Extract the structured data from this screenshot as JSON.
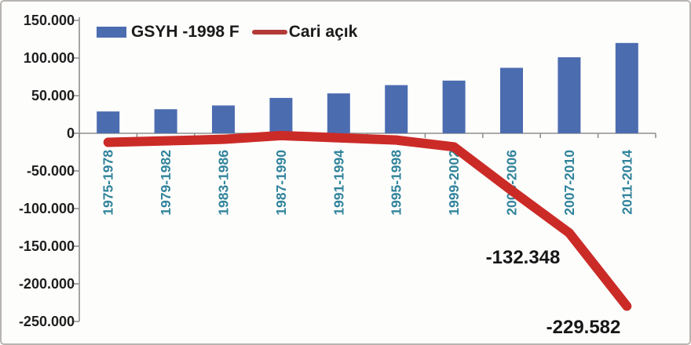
{
  "chart_data": {
    "type": "bar+line combo",
    "categories": [
      "1975-1978",
      "1979-1982",
      "1983-1986",
      "1987-1990",
      "1991-1994",
      "1995-1998",
      "1999-2002",
      "2003-2006",
      "2007-2010",
      "2011-2014"
    ],
    "series": [
      {
        "name": "GSYH -1998 F",
        "type": "bar",
        "color": "#4c6cb0",
        "values": [
          29000,
          32000,
          37000,
          47000,
          53000,
          64000,
          70000,
          87000,
          101000,
          120000
        ]
      },
      {
        "name": "Cari açık",
        "type": "line",
        "color": "#cb2b27",
        "legend_swatch_color": "#b23b38",
        "values": [
          -12000,
          -10000,
          -8000,
          -3000,
          -6000,
          -9000,
          -18000,
          -76000,
          -132348,
          -229582
        ]
      }
    ],
    "y_axis": {
      "min": -250000,
      "max": 150000,
      "tick_step": 50000,
      "tick_labels": [
        "150.000",
        "100.000",
        "50.000",
        "0",
        "-50.000",
        "-100.000",
        "-150.000",
        "-200.000",
        "-250.000"
      ]
    },
    "annotations": [
      {
        "text": "-132.348",
        "target": "2007-2010"
      },
      {
        "text": "-229.582",
        "target": "2011-2014"
      }
    ],
    "legend_position": "top",
    "grid": false,
    "colors": {
      "axis": "#8f8f8f",
      "x_tick_label": "#31849b",
      "y_tick_label": "#1f1f1f",
      "annotation_text": "#171717"
    }
  }
}
